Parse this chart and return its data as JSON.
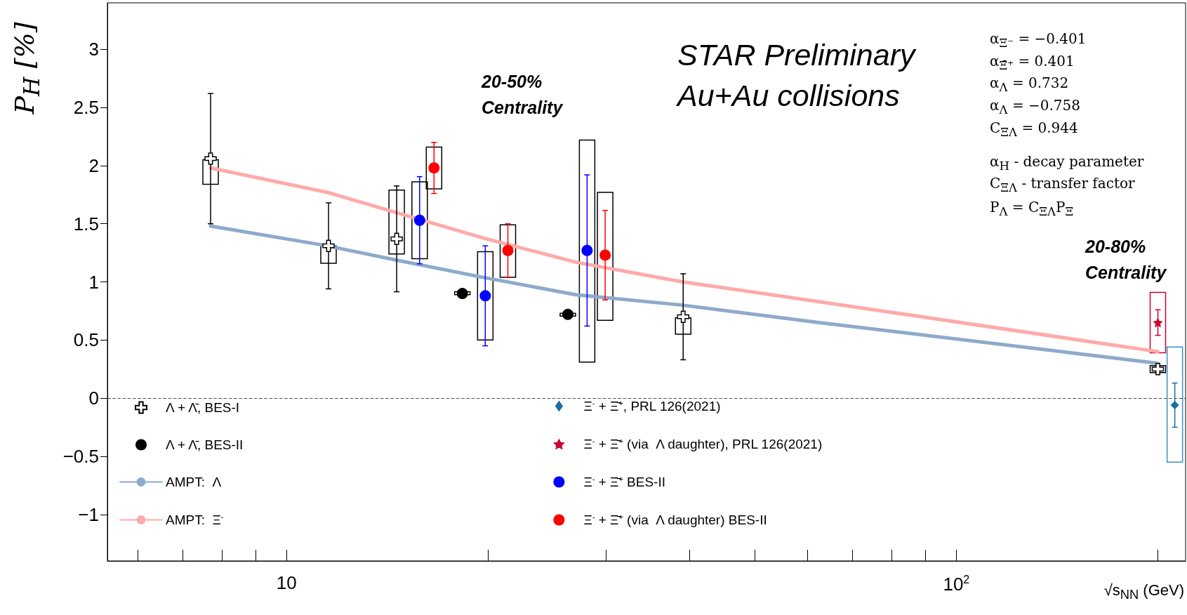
{
  "chart_data": {
    "type": "scatter",
    "xlabel": "√s$_{NN}$ (GeV)",
    "ylabel": "P$_{H}$ [%]",
    "annotations": [
      "20-50%\nCentrality",
      "STAR Preliminary",
      "Au+Au collisions",
      "α$_{Ξ⁻}$ = −0.401",
      "α$_{Ξ̄⁺}$ = 0.401",
      "α$_{Λ}$ = 0.732",
      "α$_{Λ}$ = −0.758",
      "C$_{ΞΛ}$ = 0.944",
      "α$_{H}$ - decay parameter",
      "C$_{ΞΛ}$ - transfer factor",
      "P$_{Λ}$ = C$_{ΞΛ}$P$_{Ξ}$",
      "20-80%\nCentrality"
    ],
    "log": "x",
    "xlim": [
      5.4,
      220
    ],
    "ylim": [
      -1.4,
      3.4
    ],
    "xticks": [
      {
        "value": 6,
        "label": null
      },
      {
        "value": 7,
        "label": null
      },
      {
        "value": 8,
        "label": null
      },
      {
        "value": 9,
        "label": null
      },
      10,
      {
        "value": 20,
        "label": null
      },
      {
        "value": 30,
        "label": null
      },
      {
        "value": 40,
        "label": null
      },
      {
        "value": 50,
        "label": null
      },
      {
        "value": 60,
        "label": null
      },
      {
        "value": 70,
        "label": null
      },
      {
        "value": 80,
        "label": null
      },
      {
        "value": 90,
        "label": null
      },
      {
        "value": 100,
        "label": "10$^{2}$"
      },
      {
        "value": 200,
        "label": null
      }
    ],
    "yticks": [
      {
        "value": -1,
        "label": "−1"
      },
      {
        "value": -0.5,
        "label": "−0.5"
      },
      0,
      0.5,
      1,
      1.5,
      2,
      2.5,
      3
    ],
    "legend": "bottom left",
    "ref_lines": [
      {
        "axis": "y",
        "value": 0,
        "color": "#555555",
        "line_style": "dashed"
      }
    ],
    "series": [
      {
        "name": "Λ + Λ̄, BES-I",
        "marker": "cross",
        "color": "#000000",
        "x": [
          7.7,
          11.55,
          14.6,
          39.1,
          200
        ],
        "values": [
          2.06,
          1.31,
          1.37,
          0.7,
          0.25
        ],
        "errors": [
          0.56,
          0.37,
          0.455,
          0.37,
          null
        ]
      },
      {
        "name": "Λ + Λ̄, BES-II",
        "marker": "circle",
        "color": "#000000",
        "x": [
          18.3,
          26.3
        ],
        "values": [
          0.9,
          0.72
        ]
      },
      {
        "name": "AMPT:  Λ",
        "type": "line",
        "marker": "none",
        "color": "#8eaacb",
        "x": [
          7.7,
          11.5,
          14.5,
          19.6,
          27,
          39,
          62.4,
          200
        ],
        "values": [
          1.48,
          1.31,
          1.19,
          1.04,
          0.89,
          0.8,
          0.65,
          0.3
        ]
      },
      {
        "name": "AMPT:  Ξ$^{-}$",
        "type": "line",
        "marker": "none",
        "color": "#ffaaaa",
        "x": [
          7.7,
          11.5,
          14.5,
          19.6,
          27,
          39,
          62.4,
          200
        ],
        "values": [
          1.98,
          1.77,
          1.6,
          1.38,
          1.17,
          1.0,
          0.83,
          0.4
        ]
      },
      {
        "name": "Ξ$^{-}$ + Ξ̄$^{+}$, PRL 126(2021)",
        "marker": "diamond",
        "color": "#1a6fa0",
        "x": [
          212
        ],
        "values": [
          -0.06
        ],
        "errors": [
          0.19
        ]
      },
      {
        "name": "Ξ$^{-}$ + Ξ̄$^{+}$ (via  Λ daughter), PRL 126(2021)",
        "marker": "star",
        "color": "#cc0033",
        "x": [
          200
        ],
        "values": [
          0.65
        ],
        "errors": [
          0.11
        ]
      },
      {
        "name": "Ξ$^{-}$ + Ξ̄$^{+}$ BES-II",
        "marker": "circle",
        "color": "#0000ff",
        "x": [
          15.8,
          19.8,
          28.1
        ],
        "values": [
          1.53,
          0.88,
          1.27
        ],
        "errors": [
          0.375,
          0.43,
          0.65
        ]
      },
      {
        "name": "Ξ$^{-}$ + Ξ̄$^{+}$ (via  Λ daughter) BES-II",
        "marker": "circle",
        "color": "#ff0000",
        "x": [
          16.6,
          21.4,
          29.9
        ],
        "values": [
          1.98,
          1.27,
          1.23
        ],
        "errors": [
          0.22,
          0.23,
          0.385
        ]
      },
      {
        "type": "bar",
        "color": "#000000",
        "x": [
          7.7,
          11.55,
          14.6,
          15.8,
          16.6,
          18.3,
          19.8,
          21.4,
          26.3,
          28.1,
          29.9,
          39.1,
          200
        ],
        "base": [
          1.84,
          1.16,
          1.24,
          1.2,
          1.8,
          0.89,
          0.5,
          1.04,
          0.705,
          0.31,
          0.67,
          0.55,
          0.22
        ],
        "values": [
          0.21,
          0.15,
          0.55,
          0.66,
          0.36,
          0.025,
          0.76,
          0.45,
          0.025,
          1.91,
          1.1,
          0.14,
          0.06
        ]
      },
      {
        "type": "bar",
        "color": "#3a8fc8",
        "x": [
          212
        ],
        "base": [
          -0.55
        ],
        "values": [
          0.99
        ]
      },
      {
        "type": "bar",
        "color": "#cc0033",
        "x": [
          200
        ],
        "base": [
          0.39
        ],
        "values": [
          0.52
        ]
      }
    ]
  }
}
